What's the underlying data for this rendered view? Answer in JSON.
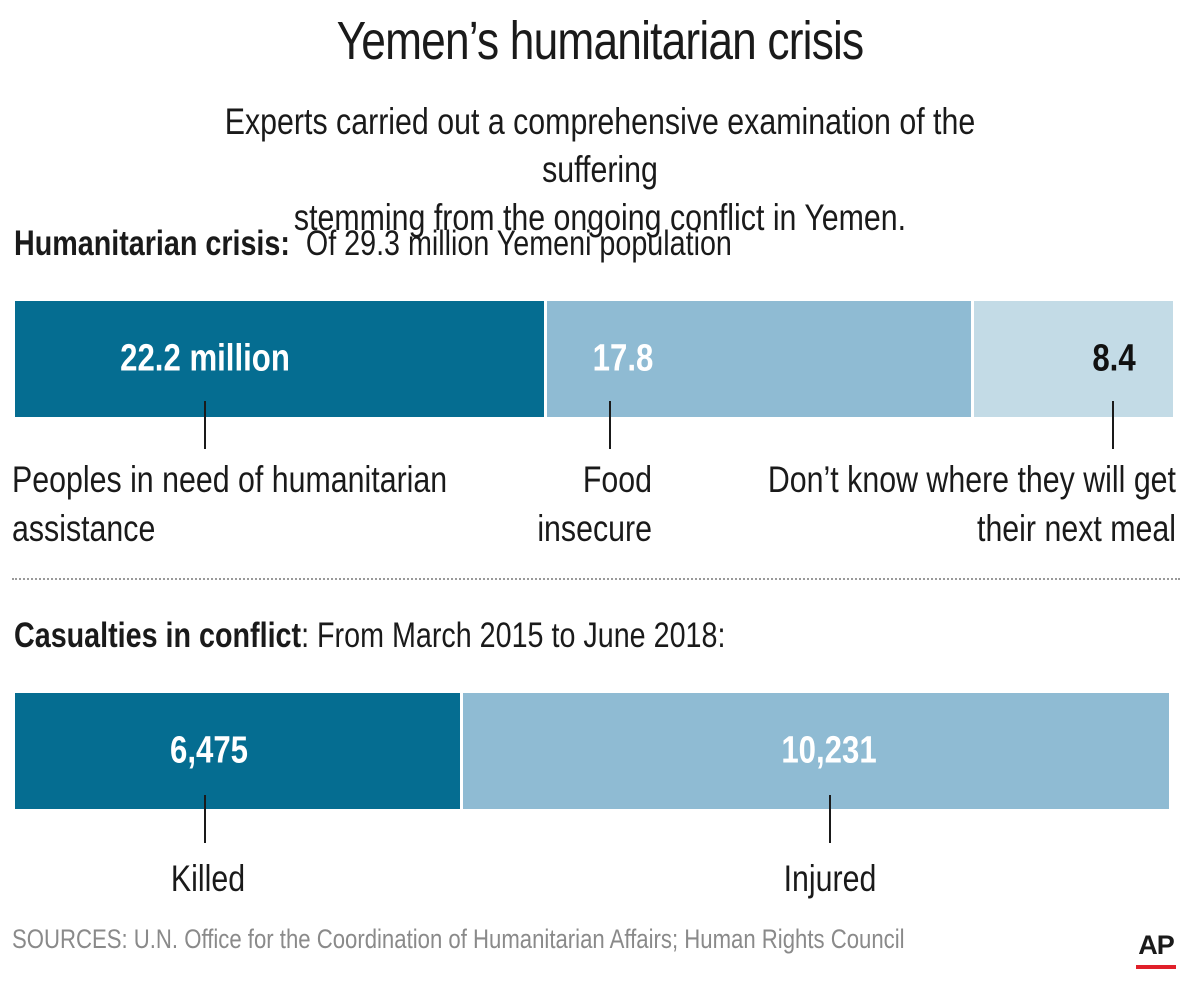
{
  "title": "Yemen’s humanitarian crisis",
  "subtitle_line1": "Experts carried out a comprehensive examination of the suffering",
  "subtitle_line2": "stemming from the ongoing conflict in Yemen.",
  "section1": {
    "heading_bold": "Humanitarian crisis:",
    "heading_rest": "Of 29.3 million Yemeni population"
  },
  "section2": {
    "heading_bold": "Casualties in conflict",
    "heading_rest": ": From March 2015 to June 2018:"
  },
  "source": "SOURCES: U.N. Office for the Coordination of Humanitarian Affairs; Human Rights Council",
  "logo": "AP",
  "colors": {
    "dark_blue": "#056d91",
    "mid_blue": "#8fbbd3",
    "light_blue": "#c3dbe6",
    "logo_red": "#e0202a"
  },
  "chart_data": [
    {
      "type": "bar",
      "orientation": "horizontal-stacked",
      "title": "Humanitarian crisis:",
      "subtitle": "Of 29.3 million Yemeni population",
      "unit": "million",
      "series": [
        {
          "name": "Peoples in need of humanitarian assistance",
          "value": 22.2,
          "value_label": "22.2 million",
          "label_line1": "Peoples in need of humanitarian",
          "label_line2": "assistance",
          "color": "#056d91"
        },
        {
          "name": "Food insecure",
          "value": 17.8,
          "value_label": "17.8",
          "label_line1": "Food",
          "label_line2": "insecure",
          "color": "#8fbbd3"
        },
        {
          "name": "Don’t know where they will get their next meal",
          "value": 8.4,
          "value_label": "8.4",
          "label_line1": "Don’t know where they will get",
          "label_line2": "their next meal",
          "color": "#c3dbe6"
        }
      ]
    },
    {
      "type": "bar",
      "orientation": "horizontal-stacked",
      "title": "Casualties in conflict",
      "subtitle": ": From March 2015 to June 2018:",
      "series": [
        {
          "name": "Killed",
          "value": 6475,
          "value_label": "6,475",
          "label_line1": "Killed",
          "color": "#056d91"
        },
        {
          "name": "Injured",
          "value": 10231,
          "value_label": "10,231",
          "label_line1": "Injured",
          "color": "#8fbbd3"
        }
      ]
    }
  ]
}
